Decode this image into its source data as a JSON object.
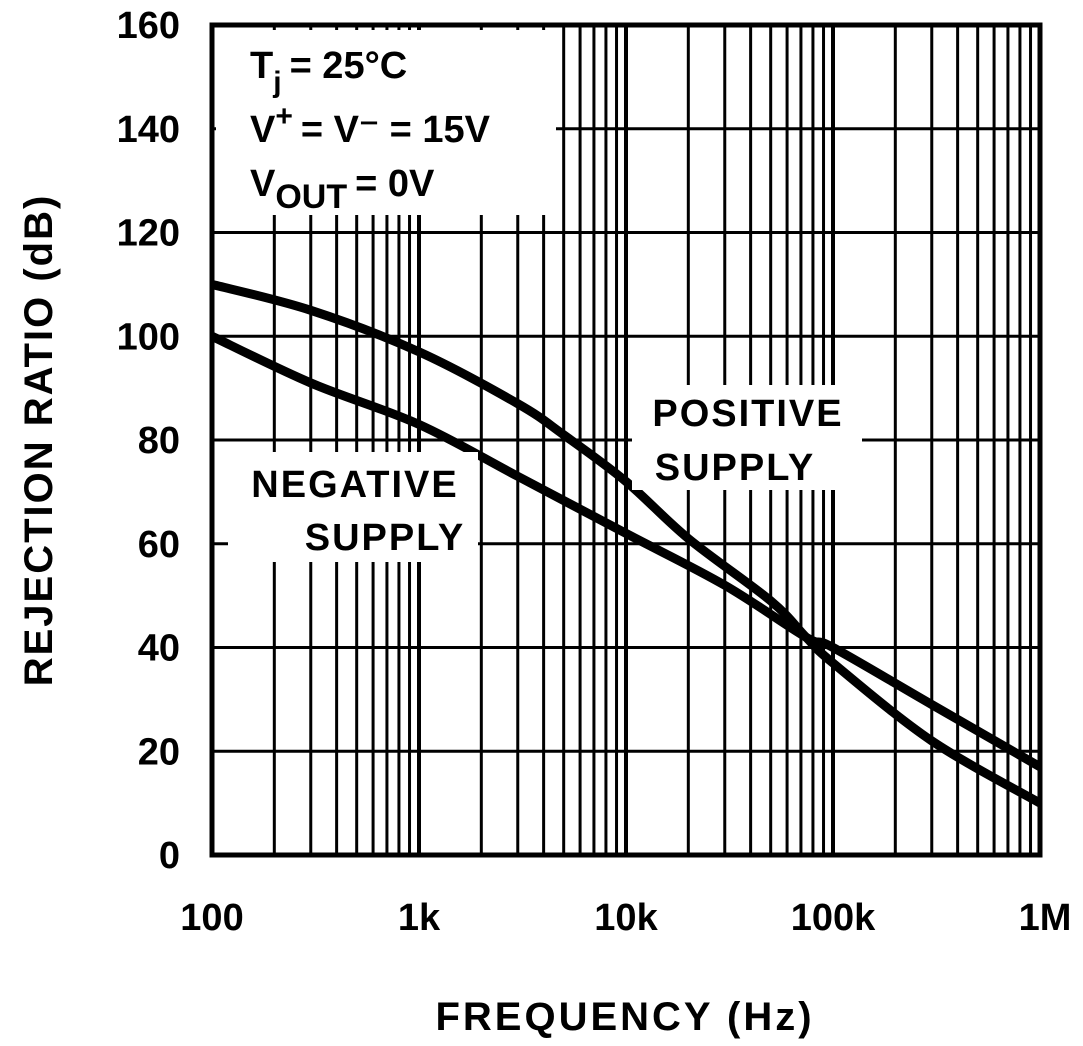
{
  "chart_data": {
    "type": "line",
    "title": "",
    "xlabel": "FREQUENCY (Hz)",
    "ylabel": "REJECTION RATIO (dB)",
    "xscale": "log",
    "xlim": [
      100,
      1000000
    ],
    "ylim": [
      0,
      160
    ],
    "grid": true,
    "x_tick_labels": [
      "100",
      "1k",
      "10k",
      "100k",
      "1M"
    ],
    "x_tick_values": [
      100,
      1000,
      10000,
      100000,
      1000000
    ],
    "y_ticks": [
      0,
      20,
      40,
      60,
      80,
      100,
      120,
      140,
      160
    ],
    "conditions": {
      "line1_main": "T",
      "line1_sub": "j",
      "line1_rest": "= 25°C",
      "line2_main": "V",
      "line2_sup": "+",
      "line2_rest": "= V⁻ = 15V",
      "line3_main": "V",
      "line3_sub": "OUT",
      "line3_rest": "= 0V"
    },
    "series": [
      {
        "name": "POSITIVE SUPPLY",
        "label_lines": [
          "POSITIVE",
          "SUPPLY"
        ],
        "x": [
          100,
          300,
          1000,
          3000,
          5000,
          10000,
          20000,
          50000,
          74000,
          100000,
          300000,
          1000000
        ],
        "y": [
          110,
          105,
          97,
          87,
          81,
          72,
          61,
          49,
          42,
          37,
          22,
          10
        ]
      },
      {
        "name": "NEGATIVE SUPPLY",
        "label_lines": [
          "NEGATIVE",
          "SUPPLY"
        ],
        "x": [
          100,
          300,
          1000,
          3000,
          10000,
          30000,
          74000,
          100000,
          300000,
          1000000
        ],
        "y": [
          100,
          91,
          83,
          73,
          62,
          52,
          42,
          40,
          29,
          17
        ]
      }
    ],
    "colors": {
      "line": "#000000",
      "background": "#ffffff"
    }
  }
}
